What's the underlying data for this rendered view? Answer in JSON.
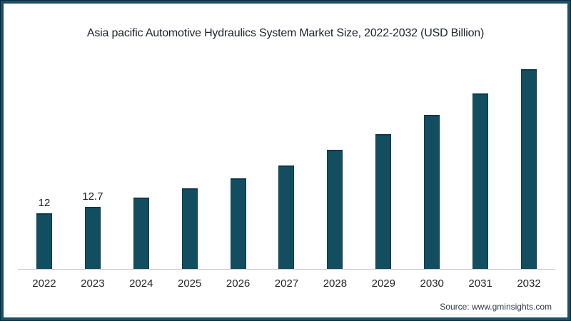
{
  "title": "Asia pacific Automotive Hydraulics System Market Size, 2022-2032 (USD Billion)",
  "source_note": "Source: www.gminsights.com",
  "colors": {
    "background": "#ffffff",
    "frame_border": "#1b4f69",
    "frame_border_outer": "#0d2b3d",
    "bar_fill": "#134e60",
    "bar_cap": "#0c3a4c",
    "axis_line": "#c9c9c9",
    "title_text": "#20242c",
    "bar_label_text": "#1c1c1c",
    "tick_text": "#262626",
    "source_text": "#2f3b47"
  },
  "chart_data": {
    "type": "bar",
    "title": "Asia pacific Automotive Hydraulics System Market Size, 2022-2032 (USD Billion)",
    "categories": [
      "2022",
      "2023",
      "2024",
      "2025",
      "2026",
      "2027",
      "2028",
      "2029",
      "2030",
      "2031",
      "2032"
    ],
    "values": [
      12,
      12.7,
      13.7,
      14.7,
      15.8,
      17.2,
      18.9,
      20.6,
      22.7,
      25.0,
      27.7
    ],
    "bar_labels": [
      "12",
      "12.7",
      "",
      "",
      "",
      "",
      "",
      "",
      "",
      "",
      ""
    ],
    "xlabel": "",
    "ylabel": "",
    "unit": "USD Billion",
    "ylim": [
      5.9,
      28.6
    ],
    "grid": false,
    "legend": false,
    "note": "Only the 2022 and 2023 bars show data labels (12 and 12.7); other values estimated from bar heights against a non-zero baseline."
  }
}
